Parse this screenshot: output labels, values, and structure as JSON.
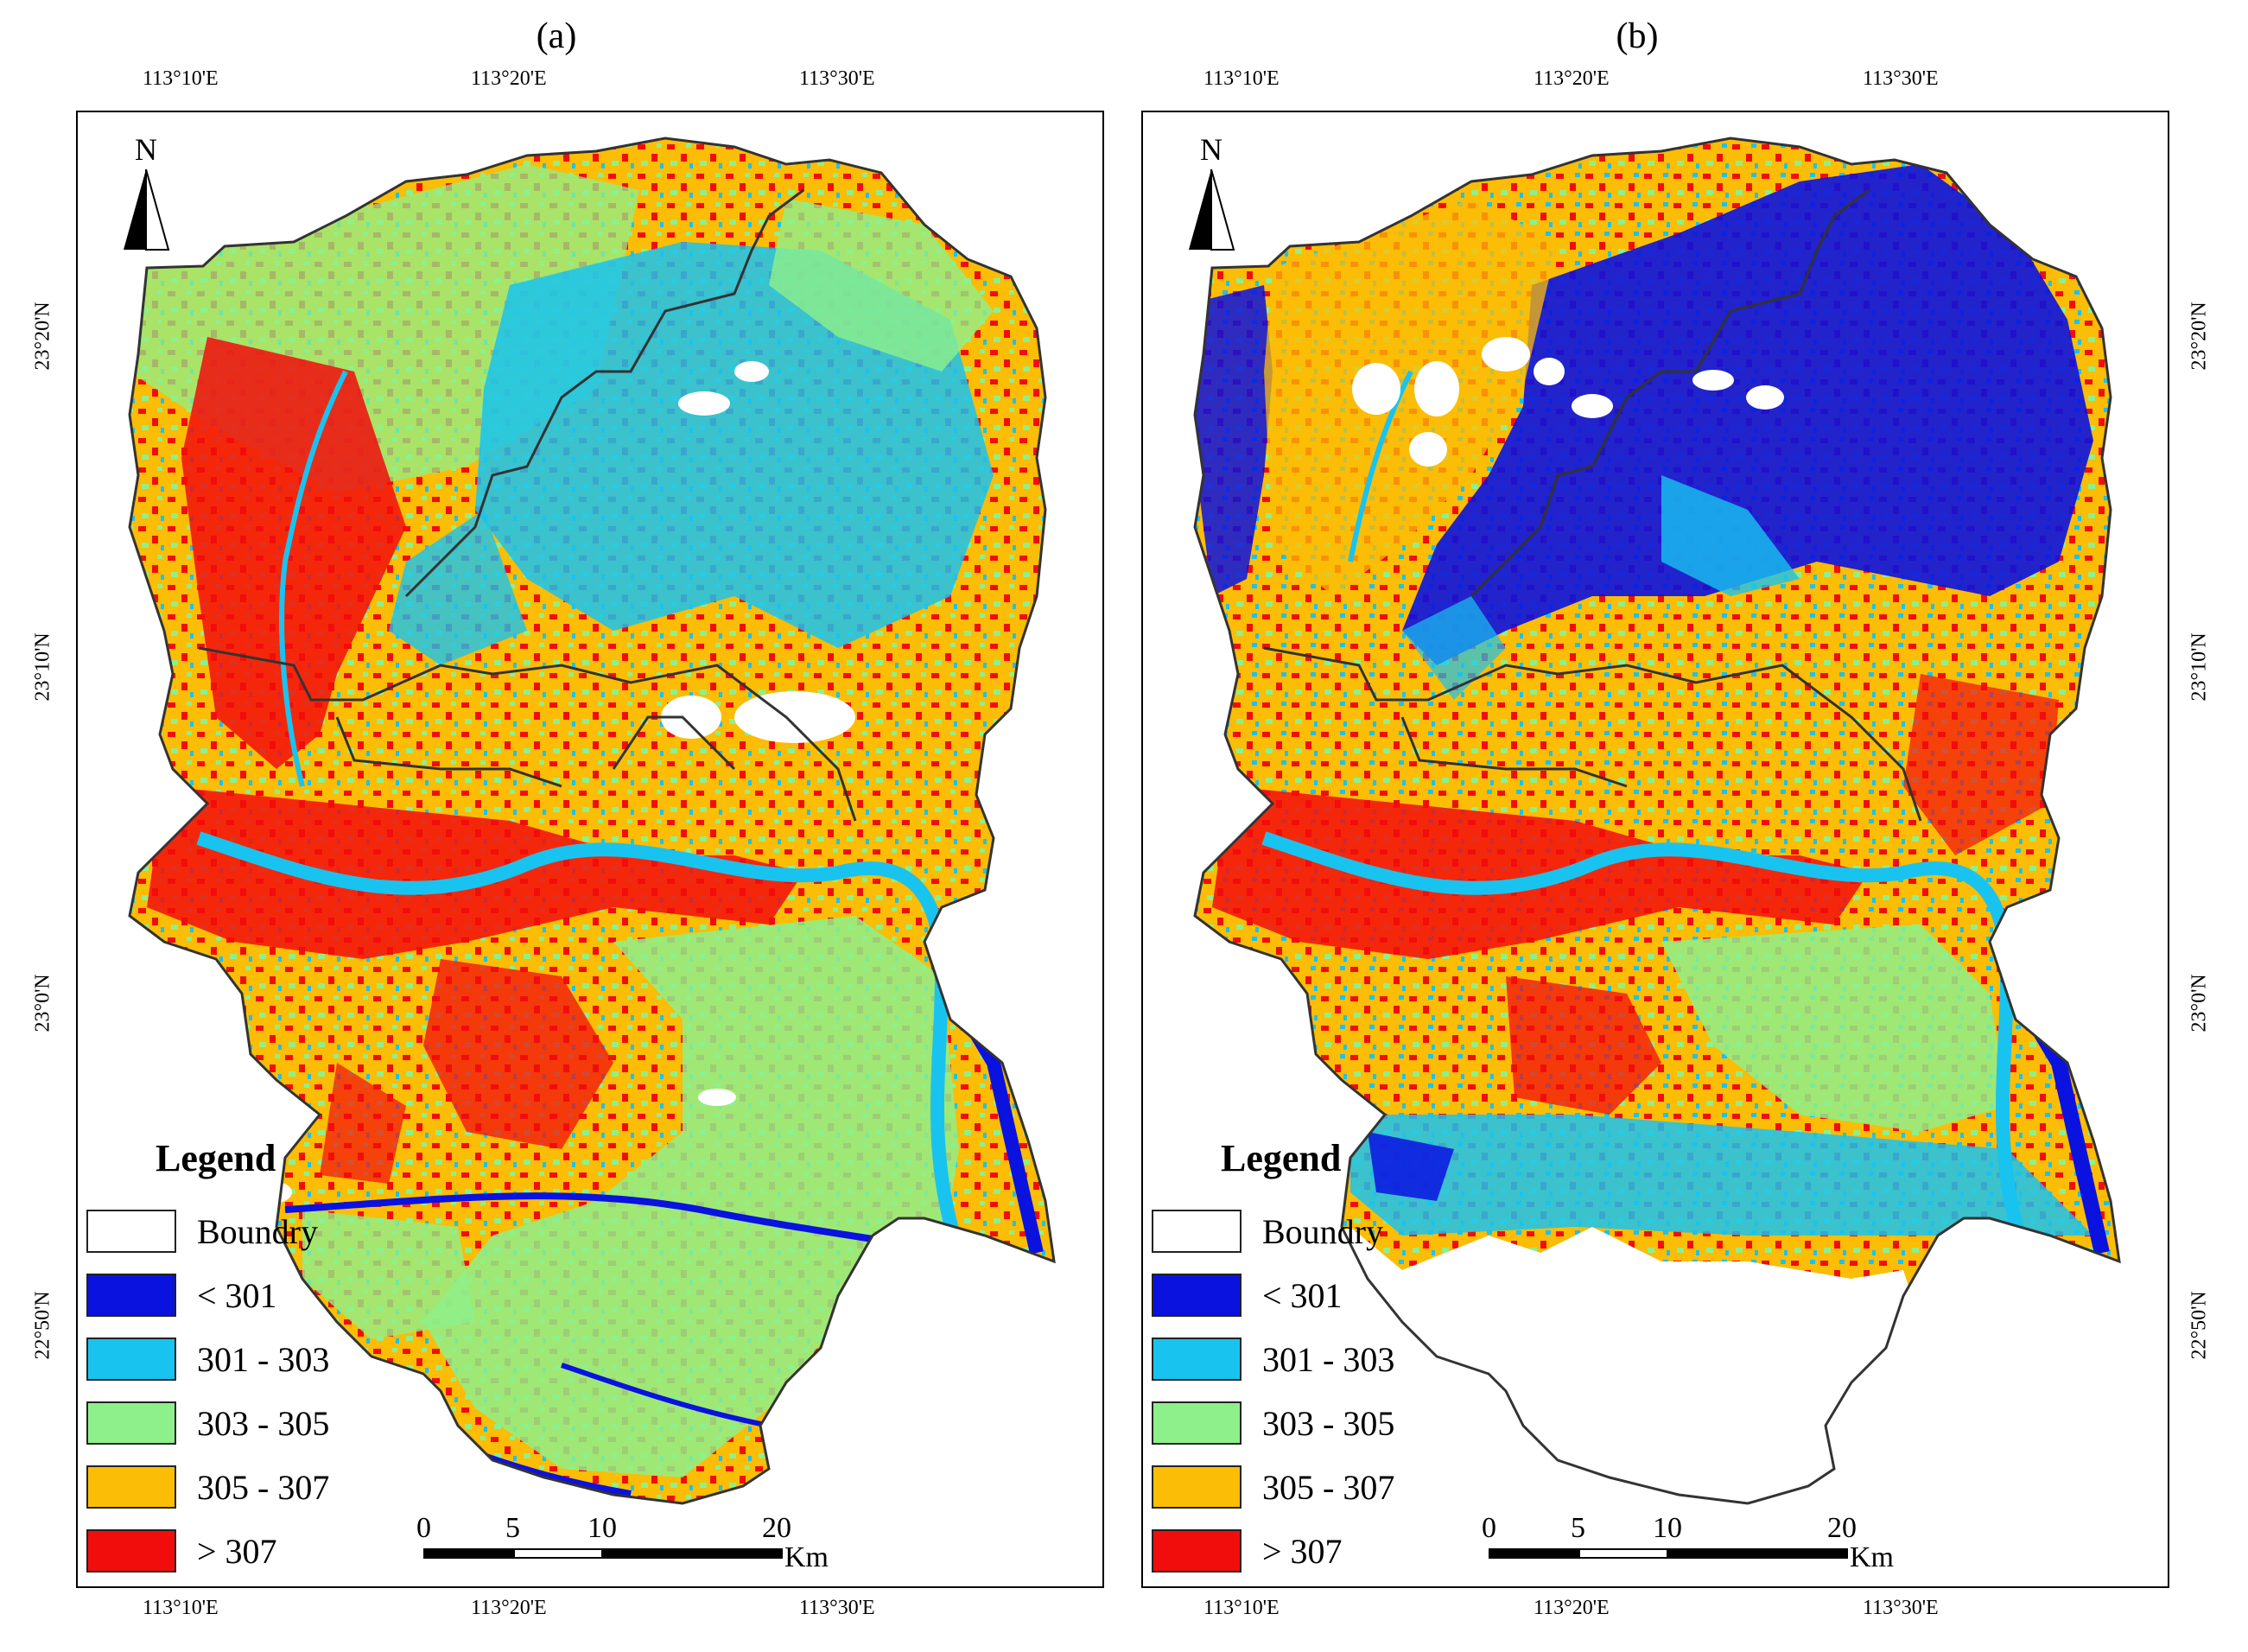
{
  "panels": [
    {
      "label": "(a)",
      "top_ticks": [
        "113°10'E",
        "113°20'E",
        "113°30'E"
      ],
      "bottom_ticks": [
        "113°10'E",
        "113°20'E",
        "113°30'E"
      ],
      "right_ticks": [
        "23°20'N",
        "23°10'N",
        "23°0'N",
        "22°50'N"
      ],
      "left_ticks": [
        "23°20'N",
        "23°10'N",
        "23°0'N",
        "22°50'N"
      ],
      "north_label": "N",
      "legend": {
        "title": "Legend",
        "items": [
          {
            "label": "Boundry",
            "color": "#ffffff"
          },
          {
            "label": "< 301",
            "color": "#0a12e0"
          },
          {
            "label": "301 - 303",
            "color": "#19c3f0"
          },
          {
            "label": "303 - 305",
            "color": "#8ef08a"
          },
          {
            "label": "305 - 307",
            "color": "#fbbd05"
          },
          {
            "label": "> 307",
            "color": "#f20d0d"
          }
        ]
      },
      "scale": {
        "ticks": [
          "0",
          "5",
          "10",
          "20"
        ],
        "unit": "Km"
      }
    },
    {
      "label": "(b)",
      "top_ticks": [
        "113°10'E",
        "113°20'E",
        "113°30'E"
      ],
      "bottom_ticks": [
        "113°10'E",
        "113°20'E",
        "113°30'E"
      ],
      "right_ticks": [
        "23°20'N",
        "23°10'N",
        "23°0'N",
        "22°50'N"
      ],
      "left_ticks": [],
      "north_label": "N",
      "legend": {
        "title": "Legend",
        "items": [
          {
            "label": "Boundry",
            "color": "#ffffff"
          },
          {
            "label": "< 301",
            "color": "#0a12e0"
          },
          {
            "label": "301 - 303",
            "color": "#19c3f0"
          },
          {
            "label": "303 - 305",
            "color": "#8ef08a"
          },
          {
            "label": "305 - 307",
            "color": "#fbbd05"
          },
          {
            "label": "> 307",
            "color": "#f20d0d"
          }
        ]
      },
      "scale": {
        "ticks": [
          "0",
          "5",
          "10",
          "20"
        ],
        "unit": "Km"
      }
    }
  ],
  "colors": {
    "lt301": "#0a12e0",
    "c301_303": "#19c3f0",
    "c303_305": "#8ef08a",
    "c305_307": "#fbbd05",
    "gt307": "#f20d0d",
    "boundary": "#333333"
  }
}
